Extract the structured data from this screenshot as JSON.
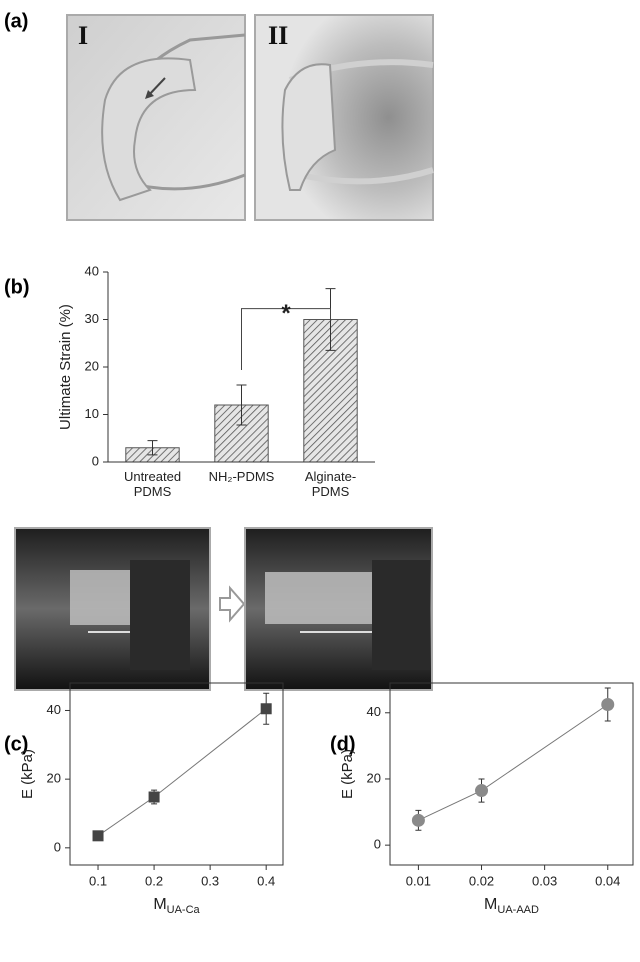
{
  "panel_labels": [
    "(a)",
    "(b)",
    "(c)",
    "(d)"
  ],
  "photo_labels": [
    "I",
    "II"
  ],
  "chart_data": [
    {
      "type": "bar",
      "ylabel": "Ultimate Strain (%)",
      "categories": [
        [
          "Untreated",
          "PDMS"
        ],
        [
          "NH₂-PDMS"
        ],
        [
          "Alginate-",
          "PDMS"
        ]
      ],
      "values": [
        3,
        12,
        30
      ],
      "errors": [
        1.5,
        4.2,
        6.5
      ],
      "color": "#555555",
      "ylim": [
        0,
        40
      ],
      "yticks": [
        0,
        10,
        20,
        30,
        40
      ],
      "annotation": "*"
    },
    {
      "type": "scatter",
      "ylabel": "E (kPa)",
      "xlabel": "M",
      "xlabel_sub": "UA-Ca",
      "marker": "square",
      "color": "#444444",
      "x": [
        0.1,
        0.2,
        0.4
      ],
      "values": [
        3.5,
        14.8,
        40.5
      ],
      "errors": [
        1,
        2,
        4.5
      ],
      "xlim": [
        0.05,
        0.43
      ],
      "xticks": [
        0.1,
        0.2,
        0.3,
        0.4
      ],
      "ylim": [
        -5,
        48
      ],
      "yticks": [
        0,
        20,
        40
      ]
    },
    {
      "type": "scatter",
      "ylabel": "E (kPa)",
      "xlabel": "M",
      "xlabel_sub": "UA-AAD",
      "marker": "circle",
      "color": "#8a8a8a",
      "x": [
        0.01,
        0.02,
        0.04
      ],
      "values": [
        7.5,
        16.5,
        42.5
      ],
      "errors": [
        3,
        3.5,
        5
      ],
      "xlim": [
        0.0055,
        0.044
      ],
      "xticks": [
        0.01,
        0.02,
        0.03,
        0.04
      ],
      "ylim": [
        -6,
        49
      ],
      "yticks": [
        0,
        20,
        40
      ]
    }
  ]
}
